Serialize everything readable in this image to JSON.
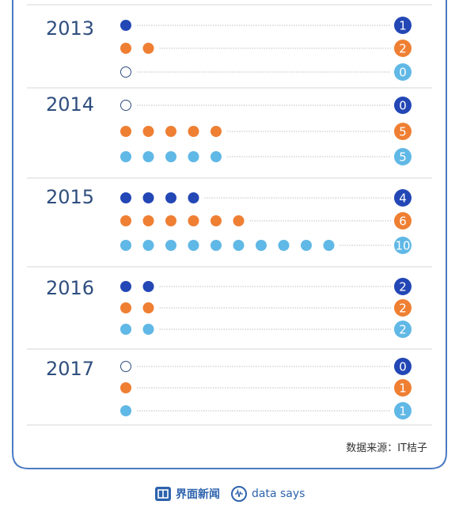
{
  "chart_data": {
    "type": "dot",
    "categories": [
      "2013",
      "2014",
      "2015",
      "2016",
      "2017"
    ],
    "series": [
      {
        "color": "#2347b5",
        "values": [
          1,
          0,
          4,
          2,
          0
        ]
      },
      {
        "color": "#ef7f33",
        "values": [
          2,
          5,
          6,
          2,
          1
        ]
      },
      {
        "color": "#60b8e6",
        "values": [
          0,
          5,
          10,
          2,
          1
        ]
      }
    ]
  },
  "source": "数据来源：IT桔子",
  "footer": {
    "brand": "界面新闻",
    "tagline": "data says"
  },
  "colors": {
    "frame": "#4a7bc4",
    "grid": "#d6d6d6",
    "empty_dot_stroke": "#2e4e7e"
  }
}
